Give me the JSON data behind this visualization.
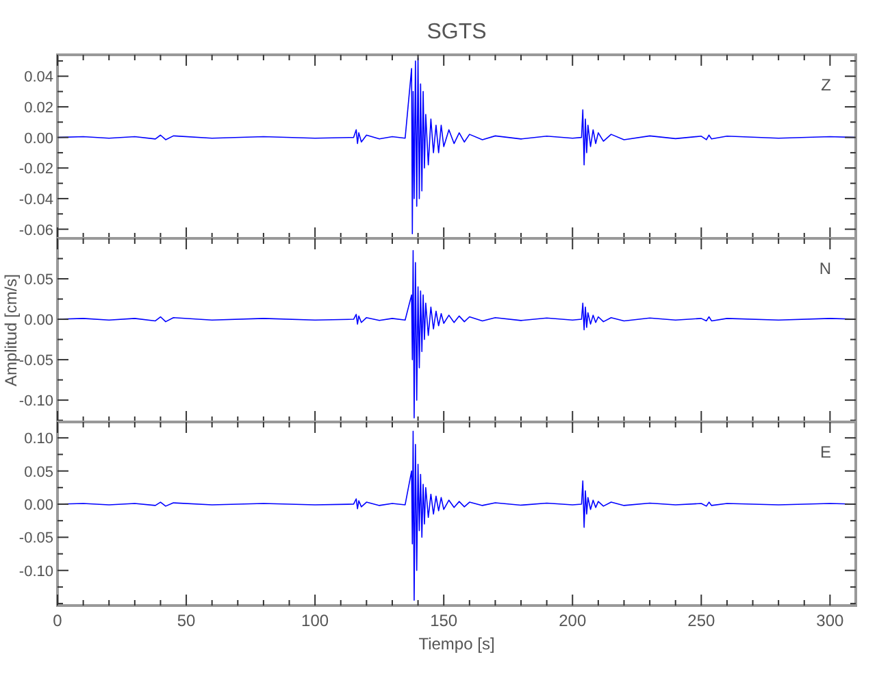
{
  "chart_data": [
    {
      "type": "line",
      "title": "SGTS",
      "annotations": [
        "Z"
      ],
      "tick_labels": "y",
      "xlim": [
        0,
        310
      ],
      "xticks": [
        {
          "value": 0,
          "label": null
        },
        {
          "value": 10,
          "label": null
        },
        {
          "value": 20,
          "label": null
        },
        {
          "value": 30,
          "label": null
        },
        {
          "value": 40,
          "label": null
        },
        {
          "value": 50,
          "label": null
        },
        {
          "value": 60,
          "label": null
        },
        {
          "value": 70,
          "label": null
        },
        {
          "value": 80,
          "label": null
        },
        {
          "value": 90,
          "label": null
        },
        {
          "value": 100,
          "label": null
        },
        {
          "value": 110,
          "label": null
        },
        {
          "value": 120,
          "label": null
        },
        {
          "value": 130,
          "label": null
        },
        {
          "value": 140,
          "label": null
        },
        {
          "value": 150,
          "label": null
        },
        {
          "value": 160,
          "label": null
        },
        {
          "value": 170,
          "label": null
        },
        {
          "value": 180,
          "label": null
        },
        {
          "value": 190,
          "label": null
        },
        {
          "value": 200,
          "label": null
        },
        {
          "value": 210,
          "label": null
        },
        {
          "value": 220,
          "label": null
        },
        {
          "value": 230,
          "label": null
        },
        {
          "value": 240,
          "label": null
        },
        {
          "value": 250,
          "label": null
        },
        {
          "value": 260,
          "label": null
        },
        {
          "value": 270,
          "label": null
        },
        {
          "value": 280,
          "label": null
        },
        {
          "value": 290,
          "label": null
        },
        {
          "value": 300,
          "label": null
        }
      ],
      "ylim": [
        -0.066,
        0.054
      ],
      "yticks": [
        {
          "value": -0.06,
          "label": "-0.06"
        },
        {
          "value": -0.05,
          "label": null
        },
        {
          "value": -0.04,
          "label": "-0.04"
        },
        {
          "value": -0.03,
          "label": null
        },
        {
          "value": -0.02,
          "label": "-0.02"
        },
        {
          "value": -0.01,
          "label": null
        },
        {
          "value": 0,
          "label": "0.00"
        },
        {
          "value": 0.01,
          "label": null
        },
        {
          "value": 0.02,
          "label": "0.02"
        },
        {
          "value": 0.03,
          "label": null
        },
        {
          "value": 0.04,
          "label": "0.04"
        },
        {
          "value": 0.05,
          "label": null
        }
      ],
      "x": [
        0,
        10,
        20,
        30,
        38,
        40,
        42,
        45,
        60,
        80,
        100,
        115,
        116,
        116.5,
        117,
        118,
        120,
        125,
        130,
        135,
        137.5,
        137.8,
        138.1,
        138.5,
        139,
        139.5,
        140,
        140.5,
        141,
        141.5,
        142,
        142.5,
        143,
        144,
        145,
        146,
        147,
        148,
        149,
        150,
        152,
        154,
        156,
        158,
        160,
        165,
        170,
        180,
        190,
        200,
        203.5,
        204,
        204.5,
        205,
        205.5,
        206,
        207,
        208,
        209,
        210,
        212,
        215,
        220,
        230,
        240,
        250,
        252,
        253,
        254,
        260,
        280,
        300,
        310
      ],
      "series": [
        {
          "color": "#0000ff",
          "values": [
            0,
            0.0005,
            -0.0005,
            0.0005,
            -0.001,
            0.0015,
            -0.0015,
            0.001,
            -0.0005,
            0.0005,
            -0.0005,
            0,
            0.005,
            -0.004,
            0.003,
            -0.003,
            0.0015,
            -0.001,
            0.0005,
            -0.0005,
            0.045,
            -0.063,
            0.03,
            -0.04,
            0.05,
            -0.045,
            0.052,
            -0.04,
            0.035,
            -0.035,
            0.03,
            -0.02,
            0.015,
            -0.018,
            0.012,
            -0.01,
            0.008,
            -0.01,
            0.008,
            -0.006,
            0.005,
            -0.004,
            0.003,
            -0.003,
            0.002,
            -0.0015,
            0.001,
            -0.001,
            0.0008,
            -0.0005,
            0,
            0.018,
            -0.018,
            0.012,
            -0.01,
            0.008,
            -0.006,
            0.005,
            -0.004,
            0.003,
            -0.0025,
            0.002,
            -0.0015,
            0.001,
            -0.0008,
            0.0008,
            -0.0015,
            0.0015,
            -0.001,
            0.0008,
            -0.0005,
            0.0005,
            0
          ]
        }
      ]
    },
    {
      "type": "line",
      "ylabel": "Amplitud [cm/s]",
      "annotations": [
        "N"
      ],
      "tick_labels": "y",
      "xlim": [
        0,
        310
      ],
      "xticks": [
        {
          "value": 0,
          "label": null
        },
        {
          "value": 10,
          "label": null
        },
        {
          "value": 20,
          "label": null
        },
        {
          "value": 30,
          "label": null
        },
        {
          "value": 40,
          "label": null
        },
        {
          "value": 50,
          "label": null
        },
        {
          "value": 60,
          "label": null
        },
        {
          "value": 70,
          "label": null
        },
        {
          "value": 80,
          "label": null
        },
        {
          "value": 90,
          "label": null
        },
        {
          "value": 100,
          "label": null
        },
        {
          "value": 110,
          "label": null
        },
        {
          "value": 120,
          "label": null
        },
        {
          "value": 130,
          "label": null
        },
        {
          "value": 140,
          "label": null
        },
        {
          "value": 150,
          "label": null
        },
        {
          "value": 160,
          "label": null
        },
        {
          "value": 170,
          "label": null
        },
        {
          "value": 180,
          "label": null
        },
        {
          "value": 190,
          "label": null
        },
        {
          "value": 200,
          "label": null
        },
        {
          "value": 210,
          "label": null
        },
        {
          "value": 220,
          "label": null
        },
        {
          "value": 230,
          "label": null
        },
        {
          "value": 240,
          "label": null
        },
        {
          "value": 250,
          "label": null
        },
        {
          "value": 260,
          "label": null
        },
        {
          "value": 270,
          "label": null
        },
        {
          "value": 280,
          "label": null
        },
        {
          "value": 290,
          "label": null
        },
        {
          "value": 300,
          "label": null
        }
      ],
      "ylim": [
        -0.127,
        0.1
      ],
      "yticks": [
        {
          "value": -0.125,
          "label": null
        },
        {
          "value": -0.1,
          "label": "-0.10"
        },
        {
          "value": -0.075,
          "label": null
        },
        {
          "value": -0.05,
          "label": "-0.05"
        },
        {
          "value": -0.025,
          "label": null
        },
        {
          "value": 0,
          "label": "0.00"
        },
        {
          "value": 0.025,
          "label": null
        },
        {
          "value": 0.05,
          "label": "0.05"
        },
        {
          "value": 0.075,
          "label": null
        }
      ],
      "x": [
        0,
        10,
        20,
        30,
        38,
        40,
        42,
        45,
        60,
        80,
        100,
        115,
        116,
        116.5,
        117,
        118,
        120,
        125,
        130,
        135,
        137.5,
        137.8,
        138.1,
        138.5,
        139,
        139.5,
        140,
        140.5,
        141,
        141.5,
        142,
        142.5,
        143,
        144,
        145,
        146,
        147,
        148,
        149,
        150,
        152,
        154,
        156,
        158,
        160,
        165,
        170,
        180,
        190,
        200,
        203.5,
        204,
        204.5,
        205,
        205.5,
        206,
        207,
        208,
        209,
        210,
        212,
        215,
        220,
        230,
        240,
        250,
        252,
        253,
        254,
        260,
        280,
        300,
        310
      ],
      "series": [
        {
          "color": "#0000ff",
          "values": [
            0,
            0.001,
            -0.001,
            0.001,
            -0.002,
            0.003,
            -0.003,
            0.002,
            -0.001,
            0.001,
            -0.001,
            0,
            0.006,
            -0.006,
            0.004,
            -0.004,
            0.002,
            -0.0015,
            0.001,
            -0.001,
            0.03,
            -0.05,
            0.085,
            -0.122,
            0.07,
            -0.1,
            0.04,
            -0.06,
            0.035,
            -0.04,
            0.03,
            -0.025,
            0.02,
            -0.02,
            0.015,
            -0.012,
            0.01,
            -0.008,
            0.007,
            -0.005,
            0.005,
            -0.004,
            0.004,
            -0.003,
            0.003,
            -0.002,
            0.002,
            -0.0015,
            0.0015,
            -0.001,
            0,
            0.02,
            -0.013,
            0.015,
            -0.01,
            0.008,
            -0.006,
            0.005,
            -0.004,
            0.003,
            -0.003,
            0.002,
            -0.002,
            0.0015,
            -0.001,
            0.001,
            -0.002,
            0.003,
            -0.002,
            0.001,
            -0.001,
            0.001,
            0
          ]
        }
      ]
    },
    {
      "type": "line",
      "xlabel": "Tiempo [s]",
      "annotations": [
        "E"
      ],
      "xlim": [
        0,
        310
      ],
      "xticks": [
        0,
        {
          "value": 10,
          "label": null
        },
        {
          "value": 20,
          "label": null
        },
        {
          "value": 30,
          "label": null
        },
        {
          "value": 40,
          "label": null
        },
        50,
        {
          "value": 60,
          "label": null
        },
        {
          "value": 70,
          "label": null
        },
        {
          "value": 80,
          "label": null
        },
        {
          "value": 90,
          "label": null
        },
        100,
        {
          "value": 110,
          "label": null
        },
        {
          "value": 120,
          "label": null
        },
        {
          "value": 130,
          "label": null
        },
        {
          "value": 140,
          "label": null
        },
        150,
        {
          "value": 160,
          "label": null
        },
        {
          "value": 170,
          "label": null
        },
        {
          "value": 180,
          "label": null
        },
        {
          "value": 190,
          "label": null
        },
        200,
        {
          "value": 210,
          "label": null
        },
        {
          "value": 220,
          "label": null
        },
        {
          "value": 230,
          "label": null
        },
        {
          "value": 240,
          "label": null
        },
        250,
        {
          "value": 260,
          "label": null
        },
        {
          "value": 270,
          "label": null
        },
        {
          "value": 280,
          "label": null
        },
        {
          "value": 290,
          "label": null
        },
        300
      ],
      "ylim": [
        -0.153,
        0.124
      ],
      "yticks": [
        {
          "value": -0.15,
          "label": null
        },
        {
          "value": -0.125,
          "label": null
        },
        {
          "value": -0.1,
          "label": "-0.10"
        },
        {
          "value": -0.075,
          "label": null
        },
        {
          "value": -0.05,
          "label": "-0.05"
        },
        {
          "value": -0.025,
          "label": null
        },
        {
          "value": 0,
          "label": "0.00"
        },
        {
          "value": 0.025,
          "label": null
        },
        {
          "value": 0.05,
          "label": "0.05"
        },
        {
          "value": 0.075,
          "label": null
        },
        {
          "value": 0.1,
          "label": "0.10"
        }
      ],
      "x": [
        0,
        10,
        20,
        30,
        38,
        40,
        42,
        45,
        60,
        80,
        100,
        115,
        116,
        116.5,
        117,
        118,
        120,
        125,
        130,
        135,
        137.5,
        137.8,
        138.1,
        138.5,
        139,
        139.5,
        140,
        140.5,
        141,
        141.5,
        142,
        142.5,
        143,
        144,
        145,
        146,
        147,
        148,
        149,
        150,
        152,
        154,
        156,
        158,
        160,
        165,
        170,
        180,
        190,
        200,
        203.5,
        204,
        204.5,
        205,
        205.5,
        206,
        207,
        208,
        209,
        210,
        212,
        215,
        220,
        230,
        240,
        250,
        252,
        253,
        254,
        260,
        280,
        300,
        310
      ],
      "series": [
        {
          "color": "#0000ff",
          "values": [
            0,
            0.001,
            -0.001,
            0.001,
            -0.002,
            0.003,
            -0.003,
            0.002,
            -0.001,
            0.001,
            -0.001,
            0,
            0.008,
            -0.007,
            0.005,
            -0.004,
            0.003,
            -0.002,
            0.001,
            -0.001,
            0.05,
            -0.06,
            0.11,
            -0.145,
            0.09,
            -0.1,
            0.06,
            -0.04,
            0.045,
            -0.05,
            0.03,
            -0.03,
            0.025,
            -0.02,
            0.015,
            -0.015,
            0.012,
            -0.01,
            0.01,
            -0.008,
            0.006,
            -0.005,
            0.004,
            -0.004,
            0.003,
            -0.002,
            0.002,
            -0.0015,
            0.0015,
            -0.001,
            0,
            0.035,
            -0.035,
            0.02,
            -0.015,
            0.01,
            -0.008,
            0.006,
            -0.005,
            0.004,
            -0.003,
            0.003,
            -0.002,
            0.0015,
            -0.001,
            0.001,
            -0.003,
            0.003,
            -0.002,
            0.001,
            -0.001,
            0.001,
            0
          ]
        }
      ]
    }
  ]
}
